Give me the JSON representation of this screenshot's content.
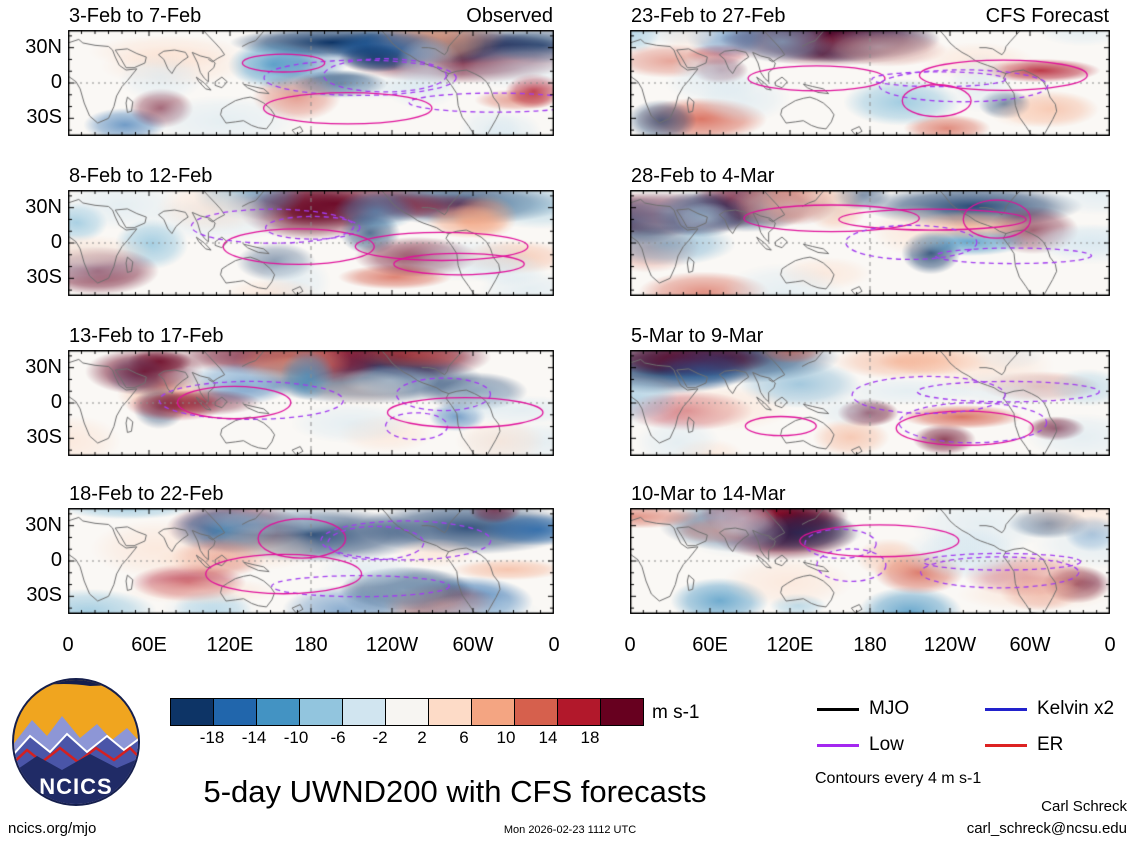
{
  "title": "5-day UWND200 with CFS forecasts",
  "columns": [
    {
      "corner": "Observed"
    },
    {
      "corner": "CFS Forecast"
    }
  ],
  "panels": [
    {
      "title": "3-Feb to 7-Feb"
    },
    {
      "title": "8-Feb to 12-Feb"
    },
    {
      "title": "13-Feb to 17-Feb"
    },
    {
      "title": "18-Feb to 22-Feb"
    },
    {
      "title": "23-Feb to 27-Feb"
    },
    {
      "title": "28-Feb to 4-Mar"
    },
    {
      "title": "5-Mar to 9-Mar"
    },
    {
      "title": "10-Mar to 14-Mar"
    }
  ],
  "axes": {
    "lat_ticks": [
      "30N",
      "0",
      "30S"
    ],
    "lon_ticks": [
      "0",
      "60E",
      "120E",
      "180",
      "120W",
      "60W",
      "0"
    ]
  },
  "colorbar": {
    "labels": [
      "-18",
      "-14",
      "-10",
      "-6",
      "-2",
      "2",
      "6",
      "10",
      "14",
      "18"
    ],
    "colors": [
      "#0d3466",
      "#2166ac",
      "#4393c3",
      "#92c5de",
      "#d1e5f0",
      "#f7f5f2",
      "#fddbc7",
      "#f4a582",
      "#d6604d",
      "#b2182b",
      "#67001f"
    ],
    "units": "m s-1"
  },
  "legend": [
    {
      "label": "MJO",
      "color": "#000000"
    },
    {
      "label": "Low",
      "color": "#a428f0"
    },
    {
      "label": "Kelvin x2",
      "color": "#2222cc"
    },
    {
      "label": "ER",
      "color": "#dd2222"
    }
  ],
  "contour_note": "Contours every 4 m s-1",
  "logo": {
    "text": "NCICS"
  },
  "footer": {
    "site": "ncics.org/mjo",
    "timestamp": "Mon 2026-02-23 1112 UTC",
    "author": "Carl Schreck",
    "email": "carl_schreck@ncsu.edu"
  },
  "chart_data": {
    "type": "heatmap",
    "title": "5-day UWND200 with CFS forecasts",
    "variable": "200-hPa zonal wind anomaly (UWND200)",
    "units": "m s-1",
    "layout": "8 global map panels in 4 rows x 2 columns; left column observed pentads, right column CFS forecast pentads",
    "panels": [
      {
        "period": "3-Feb to 7-Feb",
        "source": "Observed"
      },
      {
        "period": "8-Feb to 12-Feb",
        "source": "Observed"
      },
      {
        "period": "13-Feb to 17-Feb",
        "source": "Observed"
      },
      {
        "period": "18-Feb to 22-Feb",
        "source": "Observed"
      },
      {
        "period": "23-Feb to 27-Feb",
        "source": "CFS Forecast"
      },
      {
        "period": "28-Feb to 4-Mar",
        "source": "CFS Forecast"
      },
      {
        "period": "5-Mar to 9-Mar",
        "source": "CFS Forecast"
      },
      {
        "period": "10-Mar to 14-Mar",
        "source": "CFS Forecast"
      }
    ],
    "x_axis": {
      "tick_labels": [
        "0",
        "60E",
        "120E",
        "180",
        "120W",
        "60W",
        "0"
      ],
      "range_degrees_lon": [
        0,
        360
      ]
    },
    "y_axis": {
      "tick_labels": [
        "30N",
        "0",
        "30S"
      ]
    },
    "shading_levels": [
      -18,
      -14,
      -10,
      -6,
      -2,
      2,
      6,
      10,
      14,
      18
    ],
    "shading_colors": [
      "#0d3466",
      "#2166ac",
      "#4393c3",
      "#92c5de",
      "#d1e5f0",
      "#f7f5f2",
      "#fddbc7",
      "#f4a582",
      "#d6604d",
      "#b2182b",
      "#67001f"
    ],
    "contour_interval_note": "Contours every 4 m s-1",
    "wave_overlays": [
      {
        "name": "MJO",
        "color": "#000000"
      },
      {
        "name": "Low",
        "color": "#a428f0"
      },
      {
        "name": "Kelvin x2",
        "color": "#2222cc"
      },
      {
        "name": "ER",
        "color": "#dd2222"
      }
    ],
    "legend_position": "bottom-right",
    "grid": "dotted equator line and dashed date line per panel"
  }
}
